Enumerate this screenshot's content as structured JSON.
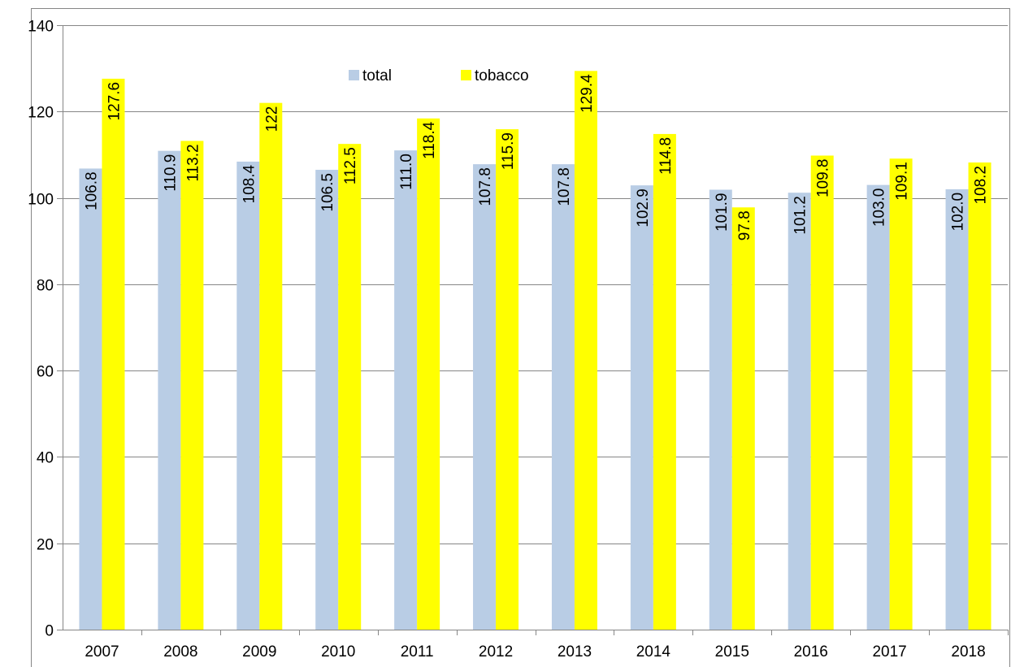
{
  "colors": {
    "total": "#b9cde5",
    "tobacco": "#ffff00",
    "gridline": "#868686",
    "axis": "#868686",
    "border": "#868686"
  },
  "legend": {
    "placement": "top-center",
    "items": [
      {
        "key": "total",
        "label": "total"
      },
      {
        "key": "tobacco",
        "label": "tobacco"
      }
    ]
  },
  "chart_data": {
    "type": "bar",
    "title": "",
    "xlabel": "",
    "ylabel": "",
    "ylim": [
      0,
      140
    ],
    "yticks": [
      0,
      20,
      40,
      60,
      80,
      100,
      120,
      140
    ],
    "ytick_labels": [
      "0",
      "20",
      "40",
      "60",
      "80",
      "100",
      "120",
      "140"
    ],
    "grid": true,
    "categories": [
      "2007",
      "2008",
      "2009",
      "2010",
      "2011",
      "2012",
      "2013",
      "2014",
      "2015",
      "2016",
      "2017",
      "2018"
    ],
    "series": [
      {
        "name": "total",
        "values": [
          106.8,
          110.9,
          108.4,
          106.5,
          111.0,
          107.8,
          107.8,
          102.9,
          101.9,
          101.2,
          103.0,
          102.0
        ],
        "labels": [
          "106.8",
          "110.9",
          "108.4",
          "106.5",
          "111.0",
          "107.8",
          "107.8",
          "102.9",
          "101.9",
          "101.2",
          "103.0",
          "102.0"
        ]
      },
      {
        "name": "tobacco",
        "values": [
          127.6,
          113.2,
          122,
          112.5,
          118.4,
          115.9,
          129.4,
          114.8,
          97.8,
          109.8,
          109.1,
          108.2
        ],
        "labels": [
          "127.6",
          "113.2",
          "122",
          "112.5",
          "118.4",
          "115.9",
          "129.4",
          "114.8",
          "97.8",
          "109.8",
          "109.1",
          "108.2"
        ]
      }
    ]
  }
}
